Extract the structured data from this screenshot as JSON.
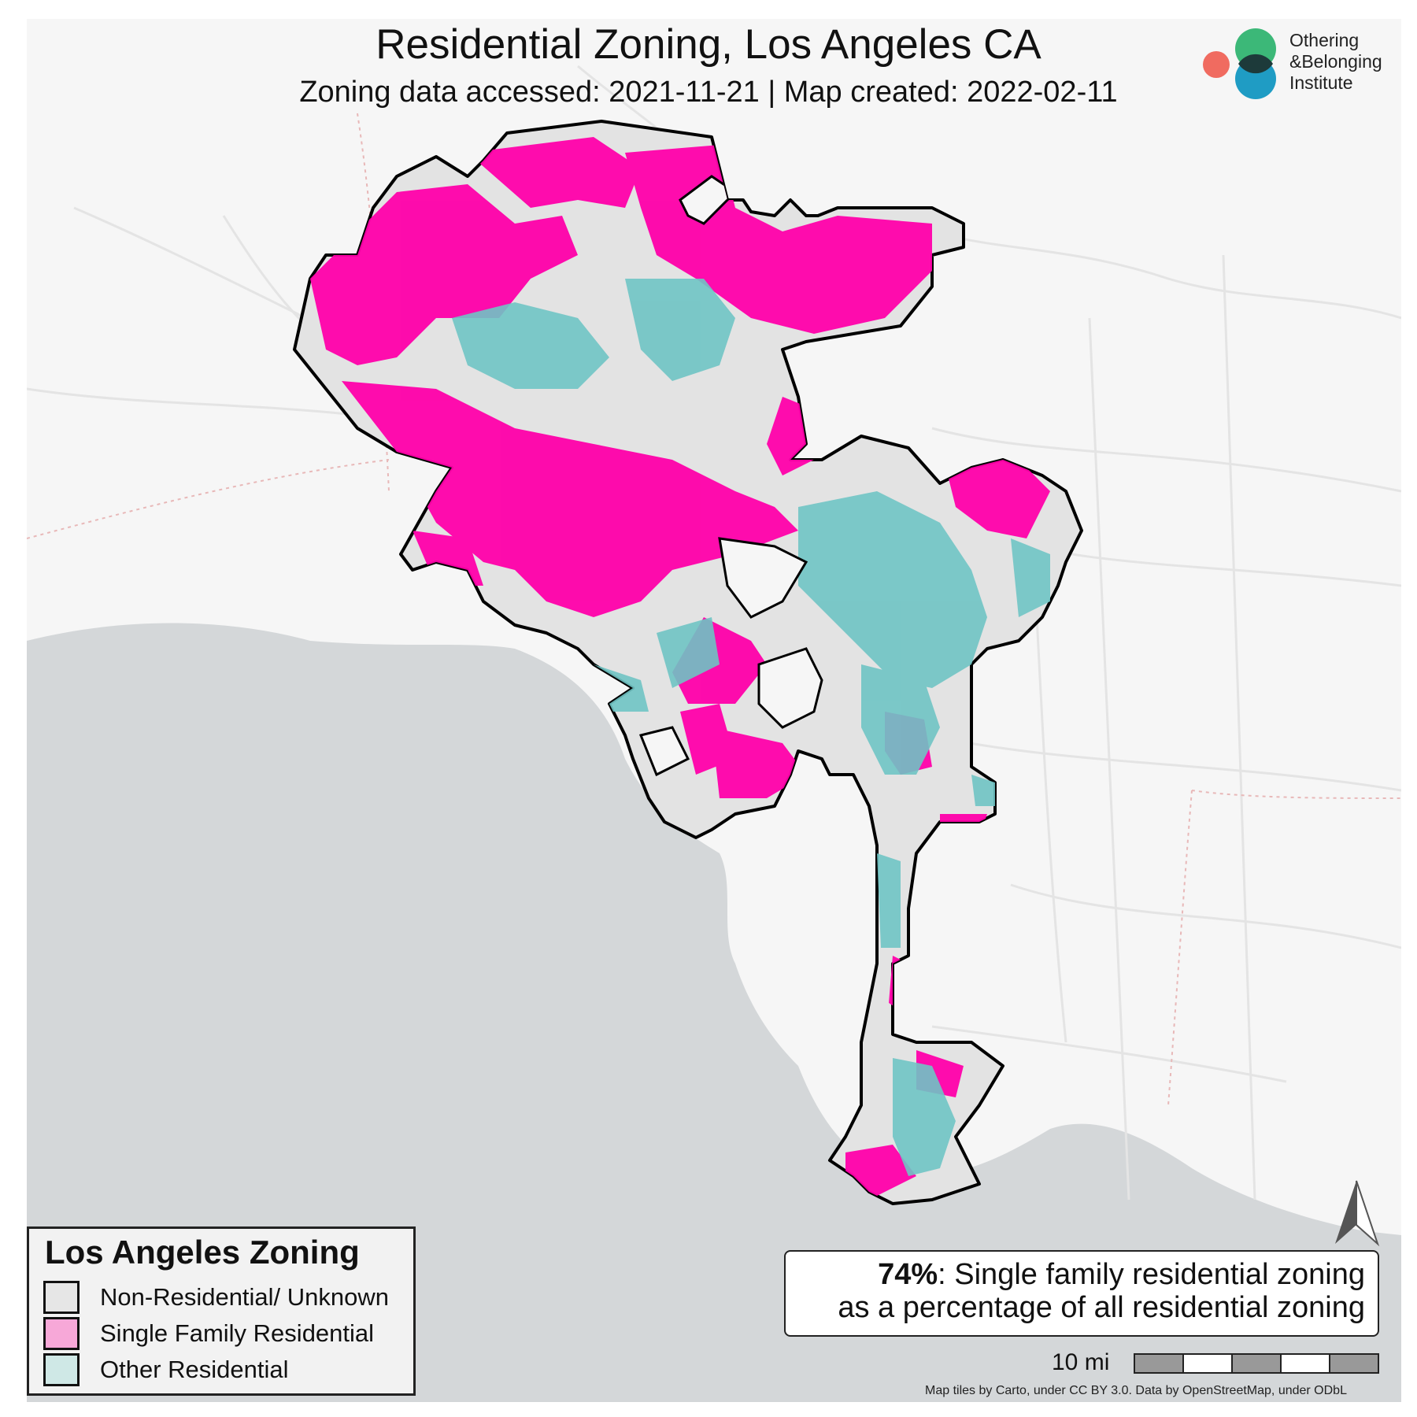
{
  "title": "Residential Zoning, Los Angeles CA",
  "subtitle": "Zoning data accessed: 2021-11-21 | Map created: 2022-02-11",
  "logo": {
    "lines": [
      "Othering",
      "&Belonging",
      "Institute"
    ],
    "colors": {
      "green": "#3cb878",
      "coral": "#f06b60",
      "blue": "#1f9cc4",
      "overlap": "#1d3a3a"
    }
  },
  "legend": {
    "title": "Los Angeles Zoning",
    "items": [
      {
        "label": "Non-Residential/ Unknown",
        "color": "#e6e6e6"
      },
      {
        "label": "Single Family Residential",
        "color": "#f7a8d8"
      },
      {
        "label": "Other Residential",
        "color": "#cfe8e6"
      }
    ]
  },
  "map_colors": {
    "single_family": "#ff00aa",
    "other_residential": "#6fc4c4",
    "non_residential": "#e3e3e3",
    "ocean": "#d4d7d9",
    "land": "#f6f6f6",
    "boundary": "#000000"
  },
  "stat": {
    "value": "74%",
    "line1": ": Single family residential zoning",
    "line2": "as a percentage of all residential zoning"
  },
  "scale": {
    "label": "10 mi"
  },
  "north_arrow": "north-arrow-icon",
  "attribution": "Map tiles by Carto, under CC BY 3.0. Data by OpenStreetMap, under ODbL"
}
